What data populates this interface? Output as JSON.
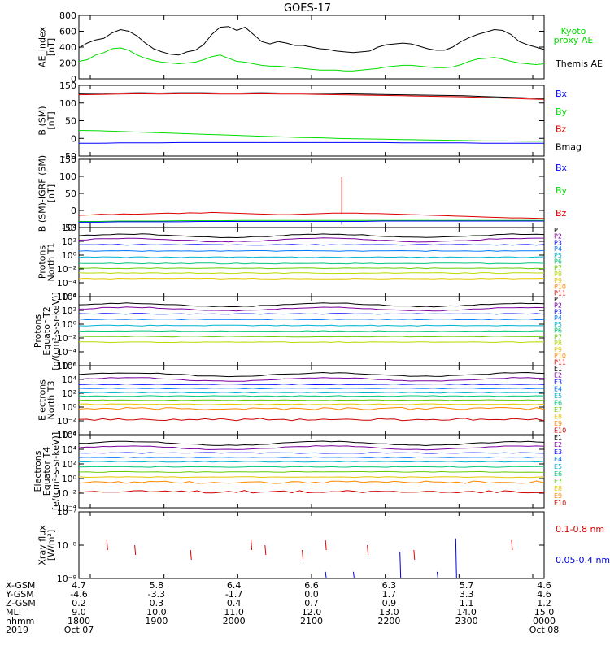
{
  "title": "GOES-17",
  "chart_data": [
    {
      "type": "line",
      "ylabel": [
        "AE_index",
        "[nT]"
      ],
      "ylim": [
        0,
        800
      ],
      "yticks": [
        "800",
        "600",
        "400",
        "200",
        "0"
      ],
      "legend": [
        {
          "label": "Kyoto",
          "color": "#00dd00"
        },
        {
          "label": "proxy AE",
          "color": "#00dd00"
        },
        {
          "label": "Themis AE",
          "color": "#000000"
        }
      ],
      "series": [
        {
          "name": "Themis AE",
          "color": "#000000",
          "y": [
            390,
            450,
            490,
            510,
            580,
            620,
            600,
            540,
            450,
            380,
            340,
            310,
            300,
            340,
            360,
            430,
            560,
            650,
            660,
            610,
            650,
            560,
            470,
            440,
            470,
            450,
            420,
            420,
            400,
            380,
            370,
            350,
            340,
            330,
            340,
            350,
            400,
            430,
            440,
            450,
            440,
            410,
            380,
            360,
            360,
            400,
            470,
            520,
            560,
            590,
            620,
            610,
            560,
            470,
            430,
            400,
            370
          ]
        },
        {
          "name": "Kyoto proxy AE",
          "color": "#00dd00",
          "y": [
            220,
            240,
            300,
            330,
            380,
            390,
            360,
            300,
            260,
            230,
            210,
            200,
            190,
            200,
            210,
            240,
            280,
            300,
            260,
            220,
            210,
            190,
            170,
            160,
            160,
            150,
            140,
            130,
            120,
            110,
            110,
            110,
            100,
            100,
            110,
            120,
            130,
            150,
            160,
            170,
            170,
            160,
            150,
            140,
            140,
            150,
            180,
            220,
            250,
            260,
            270,
            250,
            220,
            200,
            190,
            180,
            190
          ]
        }
      ]
    },
    {
      "type": "line",
      "ylabel": [
        "B (SM)",
        "[nT]"
      ],
      "ylim": [
        -60,
        150
      ],
      "yticks": [
        "150",
        "100",
        "50",
        "0",
        "-50"
      ],
      "legend": [
        {
          "label": "Bx",
          "color": "#0000ff"
        },
        {
          "label": "By",
          "color": "#00dd00"
        },
        {
          "label": "Bz",
          "color": "#dd0000"
        },
        {
          "label": "Bmag",
          "color": "#000000"
        }
      ],
      "series": [
        {
          "name": "Bmag",
          "color": "#000000",
          "y": [
            125,
            126,
            127,
            128,
            127,
            128,
            128,
            127,
            127,
            128,
            127,
            127,
            126,
            125,
            124,
            123,
            122,
            121,
            120,
            119,
            117,
            115,
            113,
            111
          ]
        },
        {
          "name": "Bz",
          "color": "#dd0000",
          "y": [
            122,
            123,
            124,
            125,
            124,
            125,
            125,
            124,
            124,
            125,
            124,
            124,
            123,
            122,
            121,
            120,
            119,
            118,
            117,
            116,
            114,
            112,
            110,
            108
          ]
        },
        {
          "name": "By",
          "color": "#00dd00",
          "y": [
            16,
            15,
            13,
            11,
            9,
            7,
            5,
            3,
            1,
            -1,
            -3,
            -5,
            -6,
            -8,
            -9,
            -10,
            -11,
            -12,
            -13,
            -14,
            -15,
            -15,
            -16,
            -16
          ]
        },
        {
          "name": "Bx",
          "color": "#0000ff",
          "y": [
            -22,
            -22,
            -21,
            -21,
            -21,
            -20,
            -20,
            -20,
            -20,
            -20,
            -20,
            -20,
            -20,
            -20,
            -20,
            -20,
            -21,
            -21,
            -21,
            -21,
            -22,
            -22,
            -22,
            -22
          ]
        }
      ]
    },
    {
      "type": "line",
      "ylabel": [
        "B (SM)-IGRF (SM)",
        "[nT]"
      ],
      "ylim": [
        -20,
        170
      ],
      "yticks": [
        "150",
        "100",
        "50",
        "0",
        "-50"
      ],
      "legend": [
        {
          "label": "Bx",
          "color": "#0000ff"
        },
        {
          "label": "By",
          "color": "#00dd00"
        },
        {
          "label": "Bz",
          "color": "#dd0000"
        }
      ],
      "series": [
        {
          "name": "Bz",
          "color": "#dd0000",
          "y": [
            14,
            15,
            17,
            16,
            18,
            17,
            18,
            19,
            20,
            19,
            21,
            20,
            22,
            21,
            20,
            19,
            18,
            17,
            16,
            16,
            17,
            18,
            19,
            20,
            20,
            20,
            19,
            19,
            18,
            17,
            16,
            15,
            14,
            13,
            12,
            11,
            10,
            9,
            8,
            7,
            7,
            6,
            5
          ]
        },
        {
          "name": "By",
          "color": "#00dd00",
          "y": [
            -3,
            -3,
            -2,
            -2,
            -2,
            -1,
            -1,
            -1,
            0,
            0,
            0,
            0,
            0,
            0,
            0,
            0,
            0,
            0,
            0,
            0,
            0,
            0,
            0,
            0
          ]
        },
        {
          "name": "Bx",
          "color": "#0000ff",
          "y": [
            -5,
            -5,
            -4,
            -4,
            -4,
            -4,
            -3,
            -3,
            -3,
            -3,
            -3,
            -3,
            -3,
            -3,
            -3,
            -2,
            -2,
            -2,
            -2,
            -2,
            -2,
            -2,
            -2,
            -2
          ]
        }
      ]
    },
    {
      "type": "line",
      "log": true,
      "ylabel": [
        "Protons",
        "North T1"
      ],
      "ylim": [
        -6,
        4
      ],
      "yticks": [
        "10⁴",
        "10²",
        "10⁰",
        "10⁻²",
        "10⁻⁴",
        "10⁻⁶"
      ],
      "channels": [
        "P1",
        "P2",
        "P3",
        "P4",
        "P5",
        "P6",
        "P7",
        "P8",
        "P9",
        "P10",
        "P11"
      ],
      "channel_colors": [
        "#000000",
        "#7a00a0",
        "#0000ff",
        "#0078ff",
        "#00b4d2",
        "#00c878",
        "#66cc00",
        "#b4dc00",
        "#e6c800",
        "#ff8800",
        "#cc0000"
      ],
      "channel_levels": [
        2.8,
        2.2,
        1.5,
        0.6,
        -0.3,
        -1.2,
        -1.9,
        -2.6,
        -3.4,
        -4.6,
        -5.5
      ],
      "channel_visible": [
        true,
        true,
        true,
        true,
        true,
        true,
        true,
        true,
        true,
        false,
        false
      ]
    },
    {
      "type": "line",
      "log": true,
      "ylabel": [
        "Protons",
        "Equator T2",
        "[p/(cm²-s-sr-keV)]"
      ],
      "ylim": [
        -6,
        4
      ],
      "yticks": [
        "10⁴",
        "10²",
        "10⁰",
        "10⁻²",
        "10⁻⁴",
        "10⁻⁶"
      ],
      "channels": [
        "P1",
        "P2",
        "P3",
        "P4",
        "P5",
        "P6",
        "P7",
        "P8",
        "P9",
        "P10",
        "P11"
      ],
      "channel_colors": [
        "#000000",
        "#7a00a0",
        "#0000ff",
        "#0078ff",
        "#00b4d2",
        "#00c878",
        "#66cc00",
        "#b4dc00",
        "#e6c800",
        "#ff8800",
        "#cc0000"
      ],
      "channel_levels": [
        2.8,
        2.2,
        1.5,
        0.7,
        -0.2,
        -1.0,
        -1.8,
        -2.6,
        -3.5,
        -4.6,
        -5.5
      ],
      "channel_visible": [
        true,
        true,
        true,
        true,
        true,
        true,
        true,
        true,
        false,
        false,
        false
      ]
    },
    {
      "type": "line",
      "log": true,
      "ylabel": [
        "Electrons",
        "North T3"
      ],
      "ylim": [
        -4,
        6
      ],
      "yticks": [
        "10⁶",
        "10⁴",
        "10²",
        "10⁰",
        "10⁻²",
        "10⁻⁴"
      ],
      "channels": [
        "E1",
        "E2",
        "E3",
        "E4",
        "E5",
        "E6",
        "E7",
        "E8",
        "E9",
        "E10"
      ],
      "channel_colors": [
        "#000000",
        "#7a00a0",
        "#0000ff",
        "#0078ff",
        "#00b4d2",
        "#00c878",
        "#66cc00",
        "#e6c800",
        "#ff8800",
        "#cc0000"
      ],
      "channel_levels": [
        4.7,
        4.0,
        3.3,
        2.7,
        2.1,
        1.6,
        1.0,
        0.4,
        -0.2,
        -1.8
      ],
      "channel_visible": [
        true,
        true,
        true,
        true,
        true,
        true,
        true,
        true,
        true,
        true
      ]
    },
    {
      "type": "line",
      "log": true,
      "ylabel": [
        "Electrons",
        "Equator T4",
        "[e/(cm²-s-sr-keV)]"
      ],
      "ylim": [
        -4,
        6
      ],
      "yticks": [
        "10⁶",
        "10⁴",
        "10²",
        "10⁰",
        "10⁻²",
        "10⁻⁴"
      ],
      "channels": [
        "E1",
        "E2",
        "E3",
        "E4",
        "E5",
        "E6",
        "E7",
        "E8",
        "E9",
        "E10"
      ],
      "channel_colors": [
        "#000000",
        "#7a00a0",
        "#0000ff",
        "#0078ff",
        "#00b4d2",
        "#00c878",
        "#66cc00",
        "#e6c800",
        "#ff8800",
        "#cc0000"
      ],
      "channel_levels": [
        4.8,
        4.2,
        3.5,
        2.9,
        2.3,
        1.6,
        0.9,
        0.2,
        -0.5,
        -1.8
      ],
      "channel_visible": [
        true,
        true,
        true,
        true,
        true,
        true,
        true,
        true,
        true,
        true
      ]
    },
    {
      "type": "line",
      "log": true,
      "ylabel": [
        "Xray flux",
        "[W/m²]"
      ],
      "ylim": [
        -9,
        -7
      ],
      "yticks": [
        "10⁻⁷",
        "10⁻⁸",
        "10⁻⁹"
      ],
      "legend": [
        {
          "label": "0.1-0.8 nm",
          "color": "#dd0000"
        },
        {
          "label": "0.05-0.4 nm",
          "color": "#0000dd"
        }
      ]
    }
  ],
  "xaxis": {
    "rows": [
      {
        "label": "X-GSM",
        "values": [
          "4.7",
          "5.8",
          "6.4",
          "6.6",
          "6.3",
          "5.7",
          "4.6"
        ]
      },
      {
        "label": "Y-GSM",
        "values": [
          "-4.6",
          "-3.3",
          "-1.7",
          "0.0",
          "1.7",
          "3.3",
          "4.6"
        ]
      },
      {
        "label": "Z-GSM",
        "values": [
          "0.2",
          "0.3",
          "0.4",
          "0.7",
          "0.9",
          "1.1",
          "1.2"
        ]
      },
      {
        "label": "MLT",
        "values": [
          "9.0",
          "10.0",
          "11.0",
          "12.0",
          "13.0",
          "14.0",
          "15.0"
        ]
      },
      {
        "label": "hhmm",
        "values": [
          "1800",
          "1900",
          "2000",
          "2100",
          "2200",
          "2300",
          "0000"
        ]
      },
      {
        "label": "2019",
        "values": [
          "Oct 07",
          "",
          "",
          "",
          "",
          "",
          "Oct 08"
        ]
      }
    ]
  }
}
